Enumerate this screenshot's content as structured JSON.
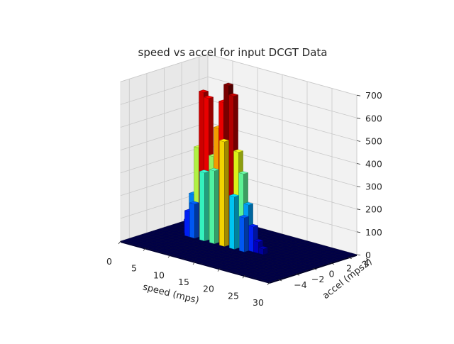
{
  "chart_data": {
    "type": "bar3d",
    "title": "speed vs accel for input DCGT Data",
    "xlabel": "speed (mps)",
    "ylabel": "accel (mps2)",
    "zlabel": "",
    "xlim": [
      0,
      30
    ],
    "ylim": [
      -5,
      5
    ],
    "zlim": [
      0,
      700
    ],
    "xticks": [
      "0",
      "5",
      "10",
      "15",
      "20",
      "25",
      "30"
    ],
    "yticks": [
      "−4",
      "−2",
      "0",
      "2",
      "4"
    ],
    "zticks": [
      "0",
      "100",
      "200",
      "300",
      "400",
      "500",
      "600",
      "700"
    ],
    "colormap": "jet",
    "grid": true,
    "bins": [
      {
        "speed": 4,
        "accel": 0,
        "count": 60
      },
      {
        "speed": 4,
        "accel": 0.5,
        "count": 30
      },
      {
        "speed": 5,
        "accel": -0.5,
        "count": 110
      },
      {
        "speed": 5,
        "accel": 0,
        "count": 180
      },
      {
        "speed": 5,
        "accel": 0.5,
        "count": 85
      },
      {
        "speed": 6,
        "accel": -0.5,
        "count": 150
      },
      {
        "speed": 6,
        "accel": 0,
        "count": 390
      },
      {
        "speed": 6,
        "accel": 0.5,
        "count": 45
      },
      {
        "speed": 7,
        "accel": 0,
        "count": 640
      },
      {
        "speed": 7,
        "accel": 0.5,
        "count": 170
      },
      {
        "speed": 8,
        "accel": 0,
        "count": 620
      },
      {
        "speed": 8,
        "accel": -0.5,
        "count": 300
      },
      {
        "speed": 9,
        "accel": 0,
        "count": 370
      },
      {
        "speed": 9,
        "accel": 0.5,
        "count": 110
      },
      {
        "speed": 10,
        "accel": 0,
        "count": 500
      },
      {
        "speed": 10,
        "accel": -0.5,
        "count": 320
      },
      {
        "speed": 11,
        "accel": 0,
        "count": 620
      },
      {
        "speed": 11,
        "accel": 0.5,
        "count": 80
      },
      {
        "speed": 12,
        "accel": 0,
        "count": 700
      },
      {
        "speed": 12,
        "accel": -0.5,
        "count": 460
      },
      {
        "speed": 13,
        "accel": 0,
        "count": 660
      },
      {
        "speed": 13,
        "accel": 0.5,
        "count": 120
      },
      {
        "speed": 14,
        "accel": 0,
        "count": 420
      },
      {
        "speed": 14,
        "accel": -0.5,
        "count": 230
      },
      {
        "speed": 15,
        "accel": 0,
        "count": 330
      },
      {
        "speed": 15,
        "accel": 0.5,
        "count": 60
      },
      {
        "speed": 16,
        "accel": 0,
        "count": 200
      },
      {
        "speed": 16,
        "accel": -0.5,
        "count": 150
      },
      {
        "speed": 17,
        "accel": 0,
        "count": 110
      },
      {
        "speed": 17,
        "accel": 0.5,
        "count": 40
      },
      {
        "speed": 18,
        "accel": 0,
        "count": 50
      },
      {
        "speed": 19,
        "accel": 0,
        "count": 25
      }
    ]
  }
}
